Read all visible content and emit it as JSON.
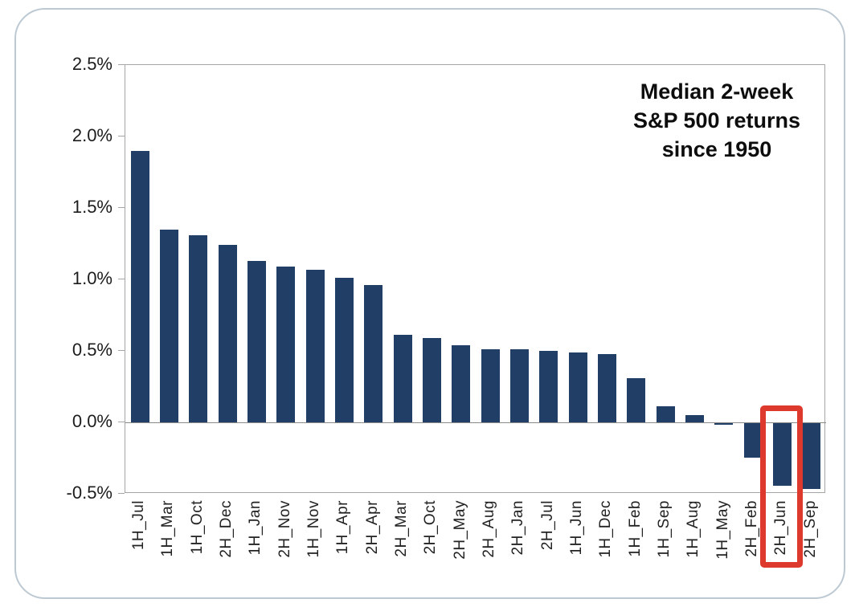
{
  "chart_data": {
    "type": "bar",
    "title": "Median 2-week S&P 500 returns since 1950",
    "title_lines": [
      "Median 2-week",
      "S&P 500 returns",
      "since 1950"
    ],
    "categories": [
      "1H_Jul",
      "1H_Mar",
      "1H_Oct",
      "2H_Dec",
      "1H_Jan",
      "2H_Nov",
      "1H_Nov",
      "1H_Apr",
      "2H_Apr",
      "2H_Mar",
      "2H_Oct",
      "2H_May",
      "2H_Aug",
      "2H_Jan",
      "2H_Jul",
      "1H_Jun",
      "1H_Dec",
      "1H_Feb",
      "1H_Sep",
      "1H_Aug",
      "1H_May",
      "2H_Feb",
      "2H_Jun",
      "2H_Sep"
    ],
    "values": [
      1.9,
      1.35,
      1.31,
      1.24,
      1.13,
      1.09,
      1.07,
      1.01,
      0.96,
      0.61,
      0.59,
      0.54,
      0.51,
      0.51,
      0.5,
      0.49,
      0.48,
      0.31,
      0.11,
      0.05,
      -0.01,
      -0.24,
      -0.44,
      -0.46
    ],
    "xlabel": "",
    "ylabel": "",
    "ylim": [
      -0.5,
      2.5
    ],
    "y_ticks": [
      {
        "label": "2.5%",
        "value": 2.5
      },
      {
        "label": "2.0%",
        "value": 2.0
      },
      {
        "label": "1.5%",
        "value": 1.5
      },
      {
        "label": "1.0%",
        "value": 1.0
      },
      {
        "label": "0.5%",
        "value": 0.5
      },
      {
        "label": "0.0%",
        "value": 0.0
      },
      {
        "label": "-0.5%",
        "value": -0.5
      }
    ],
    "grid": "off",
    "legend": "none",
    "highlighted_category": "2H_Jun",
    "colors": {
      "bar": "#213e66",
      "highlight_border": "#dd392c",
      "axis": "#a5a5a5",
      "zero_line": "#8a8a8a",
      "card_border": "#bdc9d2",
      "text": "#1c1c1c"
    }
  }
}
